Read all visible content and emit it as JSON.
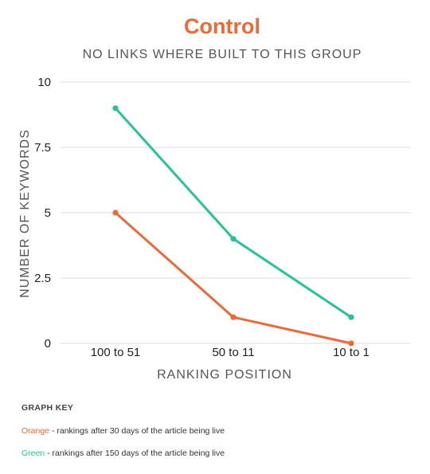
{
  "chart_data": {
    "type": "line",
    "title": "Control",
    "subtitle": "NO LINKS WHERE BUILT TO THIS GROUP",
    "xlabel": "RANKING POSITION",
    "ylabel": "NUMBER OF KEYWORDS",
    "categories": [
      "100 to 51",
      "50 to 11",
      "10 to 1"
    ],
    "yticks": [
      "0",
      "2.5",
      "5",
      "7.5",
      "10"
    ],
    "ylim": [
      0,
      10
    ],
    "grid": true,
    "series": [
      {
        "color": "#ec6a37",
        "values": [
          5,
          1,
          0
        ]
      },
      {
        "color": "#26c398",
        "values": [
          9,
          4,
          1
        ]
      }
    ]
  },
  "graph_key": {
    "title": "GRAPH KEY",
    "entries": [
      {
        "name": "Orange",
        "text": " - rankings after 30 days of the article being live",
        "color": "#ec6a37"
      },
      {
        "name": "Green",
        "text": " - rankings after 150 days of the article being live",
        "color": "#26c398"
      }
    ]
  }
}
